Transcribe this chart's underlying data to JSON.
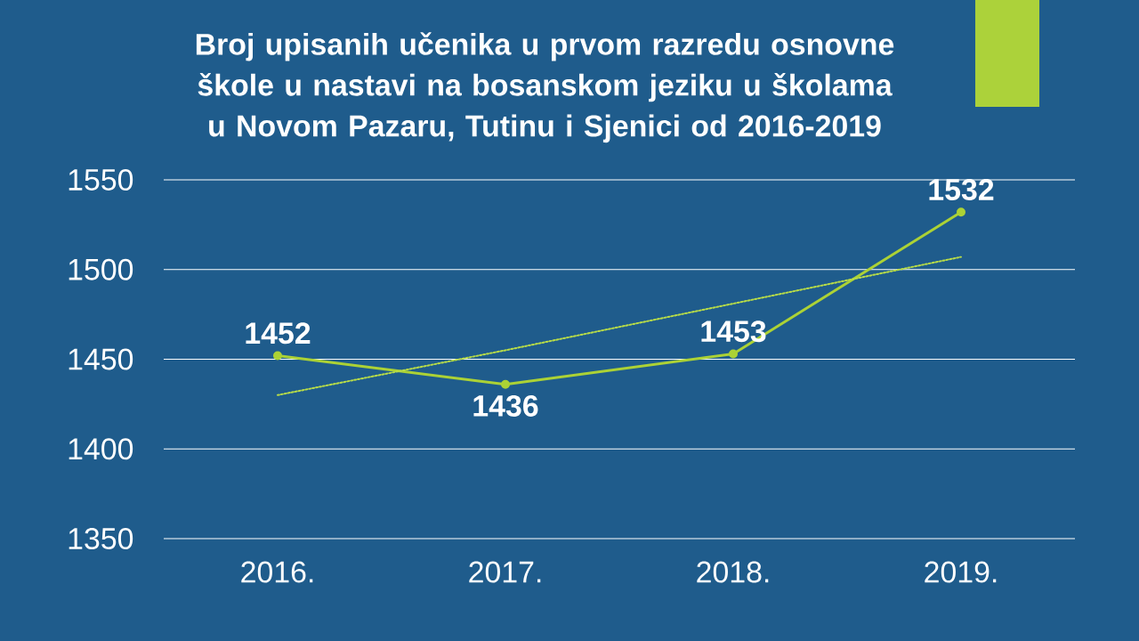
{
  "chart_data": {
    "type": "line",
    "title": "Broj upisanih učenika u prvom razredu osnovne škole u nastavi na bosanskom jeziku u školama u Novom Pazaru, Tutinu i Sjenici od 2016-2019",
    "categories": [
      "2016.",
      "2017.",
      "2018.",
      "2019."
    ],
    "series": [
      {
        "color": "#acd235",
        "values": [
          1452,
          1436,
          1453,
          1532
        ],
        "value_labels": [
          "1452",
          "1436",
          "1453",
          "1532"
        ],
        "marker": "circle",
        "line_style": "solid"
      },
      {
        "type": "line",
        "color": "#b8dc48",
        "values": [
          1430,
          1455,
          1481,
          1507
        ],
        "marker": "none",
        "line_style": "dotted"
      }
    ],
    "ylim": [
      1350,
      1550
    ],
    "yticks": [
      1350,
      1400,
      1450,
      1500,
      1550
    ],
    "grid": "y"
  }
}
